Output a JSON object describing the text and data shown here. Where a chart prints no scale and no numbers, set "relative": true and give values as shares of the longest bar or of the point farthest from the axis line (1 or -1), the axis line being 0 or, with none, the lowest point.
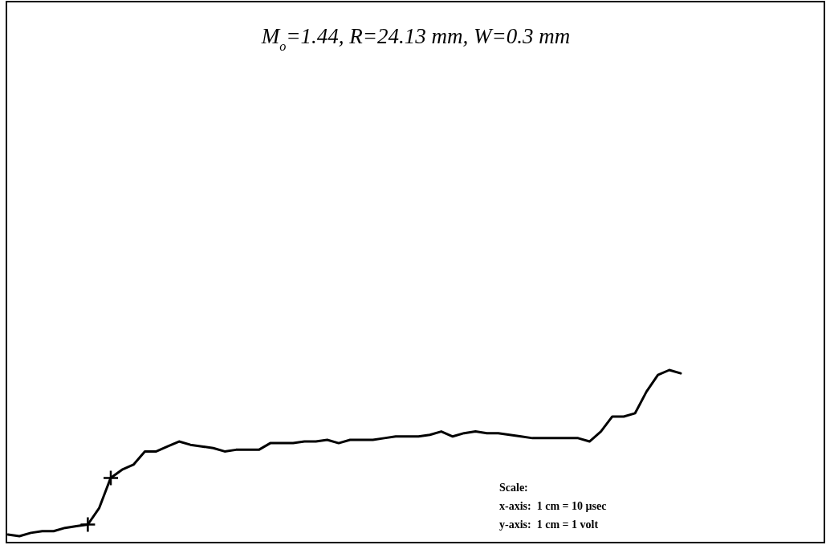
{
  "chart_data": {
    "type": "line",
    "relative": true,
    "title": "M$_{o}$=1.44, R=24.13 mm, W=0.3 mm",
    "annotations": [
      "Scale:",
      "x-axis:  1 cm = 10 µsec",
      "y-axis:  1 cm = 1 volt"
    ],
    "categories": [
      null,
      null,
      null,
      null,
      null,
      null,
      null,
      null,
      null,
      null,
      null,
      null,
      null,
      null,
      null,
      null,
      null,
      null,
      null,
      null,
      null,
      null,
      null,
      null,
      null,
      null,
      null,
      null,
      null,
      null,
      null,
      null,
      null,
      null,
      null,
      null,
      null,
      null,
      null,
      null,
      null,
      null,
      null,
      null,
      null,
      null,
      null,
      null,
      null,
      null,
      null,
      null,
      null,
      null,
      null,
      null,
      null,
      null,
      null,
      null
    ],
    "series": [
      {
        "color": "#000000",
        "values": [
          0.01,
          0,
          0.02,
          0.03,
          0.03,
          0.05,
          0.06,
          0.07,
          0.17,
          0.35,
          0.4,
          0.43,
          0.51,
          0.51,
          0.54,
          0.57,
          0.55,
          0.54,
          0.53,
          0.51,
          0.52,
          0.52,
          0.52,
          0.56,
          0.56,
          0.56,
          0.57,
          0.57,
          0.58,
          0.56,
          0.58,
          0.58,
          0.58,
          0.59,
          0.6,
          0.6,
          0.6,
          0.61,
          0.63,
          0.6,
          0.62,
          0.63,
          0.62,
          0.62,
          0.61,
          0.6,
          0.59,
          0.59,
          0.59,
          0.59,
          0.59,
          0.57,
          0.63,
          0.72,
          0.72,
          0.74,
          0.87,
          0.97,
          1,
          0.98
        ]
      }
    ]
  }
}
